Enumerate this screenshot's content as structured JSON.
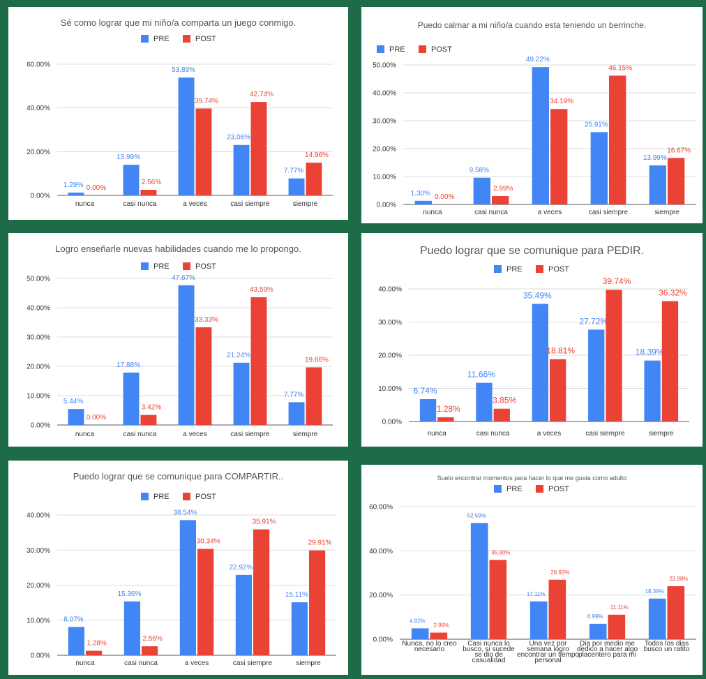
{
  "colors": {
    "pre": "#4285f4",
    "post": "#ea4335",
    "background": "#1d6b47"
  },
  "chart_data": [
    {
      "type": "bar",
      "title": "Sé como lograr que mi niño/a comparta un juego conmigo.",
      "categories": [
        "nunca",
        "casi nunca",
        "a veces",
        "casi siempre",
        "siempre"
      ],
      "series": [
        {
          "name": "PRE",
          "values": [
            1.29,
            13.99,
            53.89,
            23.06,
            7.77
          ],
          "labels": [
            "1.29%",
            "13.99%",
            "53.89%",
            "23.06%",
            "7.77%"
          ]
        },
        {
          "name": "POST",
          "values": [
            0.0,
            2.56,
            39.74,
            42.74,
            14.96
          ],
          "labels": [
            "0.00%",
            "2.56%",
            "39.74%",
            "42.74%",
            "14.96%"
          ]
        }
      ],
      "yticks": [
        "0.00%",
        "20.00%",
        "40.00%",
        "60.00%"
      ],
      "ylim": [
        0,
        60
      ],
      "grid": true,
      "legend": "top-center"
    },
    {
      "type": "bar",
      "title": "Puedo calmar a mi niño/a cuando esta teniendo un berrinche.",
      "categories": [
        "nunca",
        "casi nunca",
        "a veces",
        "casi siempre",
        "siempre"
      ],
      "series": [
        {
          "name": "PRE",
          "values": [
            1.3,
            9.58,
            49.22,
            25.91,
            13.99
          ],
          "labels": [
            "1.30%",
            "9.58%",
            "49.22%",
            "25.91%",
            "13.99%"
          ]
        },
        {
          "name": "POST",
          "values": [
            0.0,
            2.99,
            34.19,
            46.15,
            16.67
          ],
          "labels": [
            "0.00%",
            "2.99%",
            "34.19%",
            "46.15%",
            "16.67%"
          ]
        }
      ],
      "yticks": [
        "0.00%",
        "10.00%",
        "20.00%",
        "30.00%",
        "40.00%",
        "50.00%"
      ],
      "ylim": [
        0,
        50
      ],
      "grid": true,
      "legend": "top-left"
    },
    {
      "type": "bar",
      "title": "Logro enseñarle nuevas habilidades cuando me lo propongo.",
      "categories": [
        "nunca",
        "casi nunca",
        "a veces",
        "casi siempre",
        "siempre"
      ],
      "series": [
        {
          "name": "PRE",
          "values": [
            5.44,
            17.88,
            47.67,
            21.24,
            7.77
          ],
          "labels": [
            "5.44%",
            "17.88%",
            "47.67%",
            "21.24%",
            "7.77%"
          ]
        },
        {
          "name": "POST",
          "values": [
            0.0,
            3.42,
            33.33,
            43.59,
            19.66
          ],
          "labels": [
            "0.00%",
            "3.42%",
            "33.33%",
            "43.59%",
            "19.66%"
          ]
        }
      ],
      "yticks": [
        "0.00%",
        "10.00%",
        "20.00%",
        "30.00%",
        "40.00%",
        "50.00%"
      ],
      "ylim": [
        0,
        50
      ],
      "grid": true,
      "legend": "top-center"
    },
    {
      "type": "bar",
      "title": "Puedo lograr que se comunique para PEDIR.",
      "categories": [
        "nunca",
        "casi nunca",
        "a veces",
        "casi siempre",
        "siempre"
      ],
      "series": [
        {
          "name": "PRE",
          "values": [
            6.74,
            11.66,
            35.49,
            27.72,
            18.39
          ],
          "labels": [
            "6.74%",
            "11.66%",
            "35.49%",
            "27.72%",
            "18.39%"
          ]
        },
        {
          "name": "POST",
          "values": [
            1.28,
            3.85,
            18.81,
            39.74,
            36.32
          ],
          "labels": [
            "1.28%",
            "3.85%",
            "18.81%",
            "39.74%",
            "36.32%"
          ]
        }
      ],
      "yticks": [
        "0.00%",
        "10.00%",
        "20.00%",
        "30.00%",
        "40.00%"
      ],
      "ylim": [
        0,
        40
      ],
      "grid": true,
      "legend": "top-center"
    },
    {
      "type": "bar",
      "title": "Puedo lograr que se comunique para COMPARTIR..",
      "categories": [
        "nunca",
        "casi nunca",
        "a veces",
        "casi siempre",
        "siempre"
      ],
      "series": [
        {
          "name": "PRE",
          "values": [
            8.07,
            15.36,
            38.54,
            22.92,
            15.11
          ],
          "labels": [
            "8.07%",
            "15.36%",
            "38.54%",
            "22.92%",
            "15.11%"
          ]
        },
        {
          "name": "POST",
          "values": [
            1.28,
            2.56,
            30.34,
            35.91,
            29.91
          ],
          "labels": [
            "1.28%",
            "2.56%",
            "30.34%",
            "35.91%",
            "29.91%"
          ]
        }
      ],
      "yticks": [
        "0.00%",
        "10.00%",
        "20.00%",
        "30.00%",
        "40.00%"
      ],
      "ylim": [
        0,
        40
      ],
      "grid": true,
      "legend": "top-center"
    },
    {
      "type": "bar",
      "title": "Suelo encontrar momentos para hacer lo que me gusta como adulto",
      "categories": [
        [
          "Nunca, no lo creo",
          "necesario"
        ],
        [
          "Casi nunca lo",
          "busco, si sucede",
          "se dio de",
          "casualidad"
        ],
        [
          "Una vez por",
          "semana logro",
          "encontrar un tiempo",
          "personal"
        ],
        [
          "Dia por medio me",
          "dedico a hacer algo",
          "placentero para mi"
        ],
        [
          "Todos los dias",
          "busco un ratito"
        ]
      ],
      "series": [
        {
          "name": "PRE",
          "values": [
            4.92,
            52.59,
            17.11,
            6.99,
            18.39
          ],
          "labels": [
            "4.92%",
            "52.59%",
            "17.11%",
            "6.99%",
            "18.39%"
          ]
        },
        {
          "name": "POST",
          "values": [
            2.99,
            35.9,
            26.92,
            11.11,
            23.98
          ],
          "labels": [
            "2.99%",
            "35.90%",
            "26.92%",
            "11.11%",
            "23.98%"
          ]
        }
      ],
      "yticks": [
        "0.00%",
        "20.00%",
        "40.00%",
        "60.00%"
      ],
      "ylim": [
        0,
        60
      ],
      "grid": true,
      "legend": "top-center"
    }
  ]
}
